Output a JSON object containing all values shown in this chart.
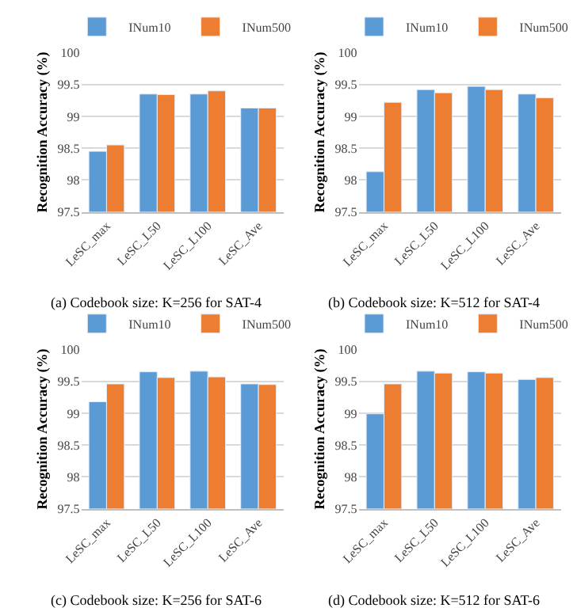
{
  "chart_data": [
    {
      "type": "bar",
      "categories": [
        "LeSC_max",
        "LeSC_L50",
        "LeSC_L100",
        "LeSC_Ave"
      ],
      "ylabel": "Recognition Accuracy (%)",
      "ylim": [
        97.5,
        100
      ],
      "yticks": [
        97.5,
        98,
        98.5,
        99,
        99.5,
        100
      ],
      "grid": "y",
      "legend": "top",
      "annotations": [
        "(a) Codebook size: K=256 for SAT-4"
      ],
      "series": [
        {
          "name": "INum10",
          "color": "#5b9bd5",
          "values": [
            98.45,
            99.35,
            99.35,
            99.13
          ]
        },
        {
          "name": "INum500",
          "color": "#ed7d31",
          "values": [
            98.55,
            99.34,
            99.4,
            99.13
          ]
        }
      ]
    },
    {
      "type": "bar",
      "categories": [
        "LeSC_max",
        "LeSC_L50",
        "LeSC_L100",
        "LeSC_Ave"
      ],
      "ylabel": "Recognition Accuracy (%)",
      "ylim": [
        97.5,
        100
      ],
      "yticks": [
        97.5,
        98,
        98.5,
        99,
        99.5,
        100
      ],
      "grid": "y",
      "legend": "top",
      "annotations": [
        "(b) Codebook size: K=512 for SAT-4"
      ],
      "series": [
        {
          "name": "INum10",
          "color": "#5b9bd5",
          "values": [
            98.13,
            99.42,
            99.47,
            99.35
          ]
        },
        {
          "name": "INum500",
          "color": "#ed7d31",
          "values": [
            99.22,
            99.37,
            99.42,
            99.29
          ]
        }
      ]
    },
    {
      "type": "bar",
      "categories": [
        "LeSC_max",
        "LeSC_L50",
        "LeSC_L100",
        "LeSC_Ave"
      ],
      "ylabel": "Recognition Accuracy (%)",
      "ylim": [
        97.5,
        100
      ],
      "yticks": [
        97.5,
        98,
        98.5,
        99,
        99.5,
        100
      ],
      "grid": "y",
      "legend": "top",
      "annotations": [
        "(c) Codebook size: K=256 for SAT-6"
      ],
      "series": [
        {
          "name": "INum10",
          "color": "#5b9bd5",
          "values": [
            99.18,
            99.65,
            99.66,
            99.46
          ]
        },
        {
          "name": "INum500",
          "color": "#ed7d31",
          "values": [
            99.46,
            99.56,
            99.57,
            99.45
          ]
        }
      ]
    },
    {
      "type": "bar",
      "categories": [
        "LeSC_max",
        "LeSC_L50",
        "LeSC_L100",
        "LeSC_Ave"
      ],
      "ylabel": "Recognition Accuracy (%)",
      "ylim": [
        97.5,
        100
      ],
      "yticks": [
        97.5,
        98,
        98.5,
        99,
        99.5,
        100
      ],
      "grid": "y",
      "legend": "top",
      "annotations": [
        "(d) Codebook size: K=512 for SAT-6"
      ],
      "series": [
        {
          "name": "INum10",
          "color": "#5b9bd5",
          "values": [
            98.99,
            99.66,
            99.65,
            99.53
          ]
        },
        {
          "name": "INum500",
          "color": "#ed7d31",
          "values": [
            99.46,
            99.63,
            99.63,
            99.56
          ]
        }
      ]
    }
  ]
}
